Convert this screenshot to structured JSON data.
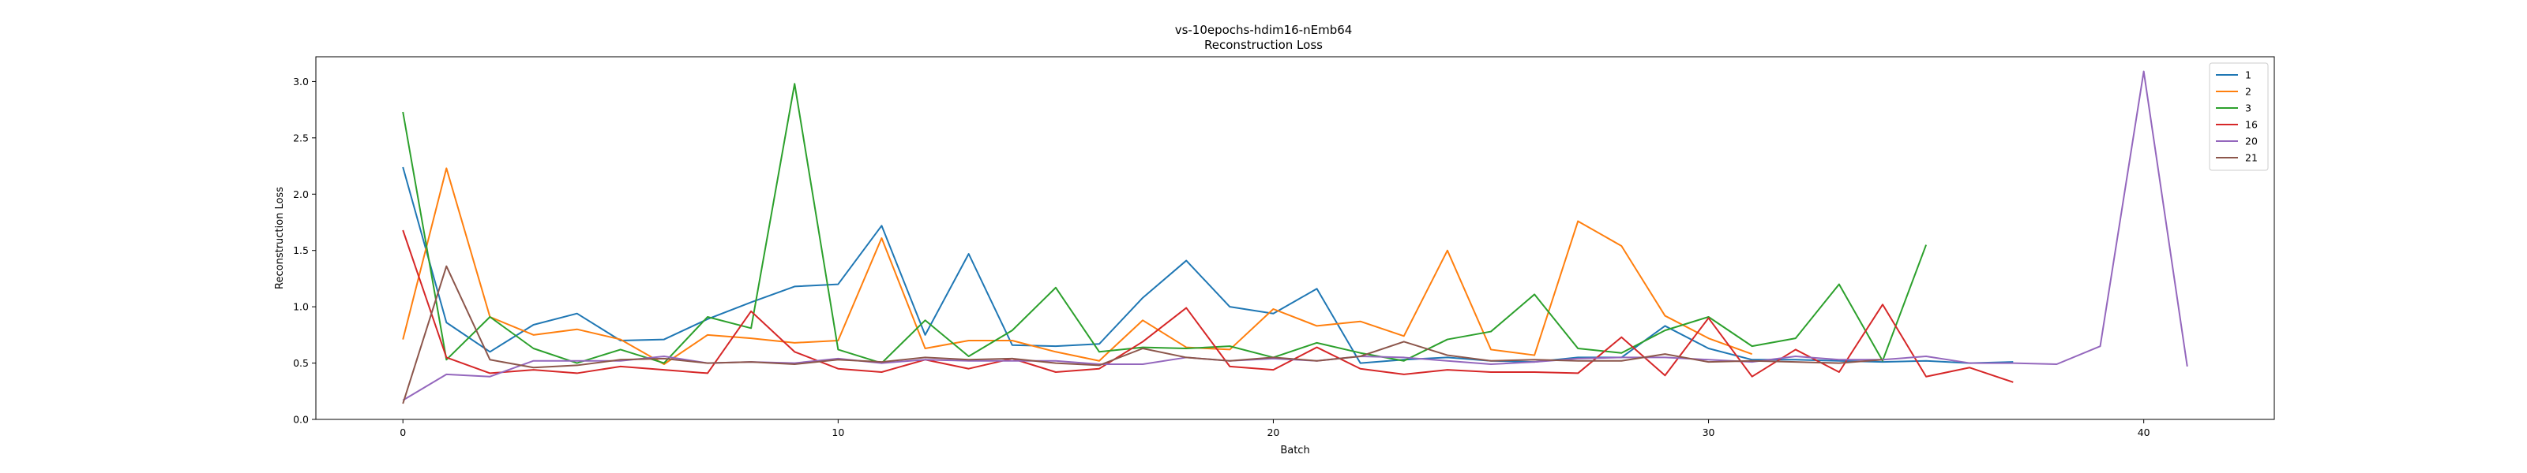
{
  "chart_data": {
    "type": "line",
    "title": "vs-10epochs-hdim16-nEmb64",
    "subtitle": "Reconstruction Loss",
    "xlabel": "Batch",
    "ylabel": "Reconstruction Loss",
    "xlim": [
      -2,
      43
    ],
    "ylim": [
      0,
      3.22
    ],
    "xticks": [
      0,
      10,
      20,
      30,
      40
    ],
    "yticks": [
      0.0,
      0.5,
      1.0,
      1.5,
      2.0,
      2.5,
      3.0
    ],
    "ytick_labels": [
      "0.0",
      "0.5",
      "1.0",
      "1.5",
      "2.0",
      "2.5",
      "3.0"
    ],
    "grid": false,
    "legend_position": "top-right",
    "series": [
      {
        "name": "1",
        "color": "#1f77b4",
        "x_start": 0,
        "values": [
          2.24,
          0.86,
          0.6,
          0.84,
          0.94,
          0.7,
          0.71,
          0.89,
          1.04,
          1.18,
          1.2,
          1.72,
          0.75,
          1.47,
          0.66,
          0.65,
          0.67,
          1.08,
          1.41,
          1.0,
          0.94,
          1.16,
          0.5,
          0.53,
          0.55,
          0.52,
          0.51,
          0.55,
          0.55,
          0.83,
          0.63,
          0.53,
          0.53,
          0.52,
          0.51,
          0.52,
          0.5,
          0.51
        ]
      },
      {
        "name": "2",
        "color": "#ff7f0e",
        "x_start": 0,
        "values": [
          0.71,
          2.23,
          0.91,
          0.75,
          0.8,
          0.71,
          0.49,
          0.75,
          0.72,
          0.68,
          0.7,
          1.61,
          0.63,
          0.7,
          0.7,
          0.6,
          0.52,
          0.88,
          0.64,
          0.62,
          0.98,
          0.83,
          0.87,
          0.74,
          1.5,
          0.62,
          0.57,
          1.76,
          1.54,
          0.92,
          0.72,
          0.58
        ]
      },
      {
        "name": "3",
        "color": "#2ca02c",
        "x_start": 0,
        "values": [
          2.73,
          0.53,
          0.91,
          0.63,
          0.5,
          0.62,
          0.5,
          0.91,
          0.81,
          2.98,
          0.62,
          0.5,
          0.88,
          0.56,
          0.79,
          1.17,
          0.6,
          0.64,
          0.63,
          0.65,
          0.55,
          0.68,
          0.59,
          0.52,
          0.71,
          0.78,
          1.11,
          0.63,
          0.59,
          0.79,
          0.91,
          0.65,
          0.72,
          1.2,
          0.52,
          1.55
        ]
      },
      {
        "name": "16",
        "color": "#d62728",
        "x_start": 0,
        "values": [
          1.68,
          0.55,
          0.41,
          0.44,
          0.41,
          0.47,
          0.44,
          0.41,
          0.96,
          0.6,
          0.45,
          0.42,
          0.53,
          0.45,
          0.54,
          0.42,
          0.45,
          0.69,
          0.99,
          0.47,
          0.44,
          0.64,
          0.45,
          0.4,
          0.44,
          0.42,
          0.42,
          0.41,
          0.73,
          0.39,
          0.9,
          0.38,
          0.62,
          0.42,
          1.02,
          0.38,
          0.46,
          0.33
        ]
      },
      {
        "name": "20",
        "color": "#9467bd",
        "x_start": 0,
        "values": [
          0.17,
          0.4,
          0.38,
          0.52,
          0.52,
          0.52,
          0.56,
          0.5,
          0.51,
          0.5,
          0.54,
          0.5,
          0.53,
          0.52,
          0.52,
          0.52,
          0.49,
          0.49,
          0.55,
          0.52,
          0.54,
          0.52,
          0.56,
          0.55,
          0.52,
          0.49,
          0.51,
          0.54,
          0.55,
          0.55,
          0.53,
          0.51,
          0.56,
          0.53,
          0.53,
          0.56,
          0.5,
          0.5,
          0.49,
          0.65,
          3.09,
          0.47
        ]
      },
      {
        "name": "21",
        "color": "#8c564b",
        "x_start": 0,
        "values": [
          0.14,
          1.36,
          0.53,
          0.46,
          0.48,
          0.53,
          0.54,
          0.5,
          0.51,
          0.49,
          0.53,
          0.51,
          0.55,
          0.53,
          0.54,
          0.5,
          0.48,
          0.63,
          0.55,
          0.52,
          0.55,
          0.52,
          0.56,
          0.69,
          0.57,
          0.52,
          0.53,
          0.52,
          0.52,
          0.58,
          0.51,
          0.52,
          0.51,
          0.5,
          0.53
        ]
      }
    ]
  }
}
